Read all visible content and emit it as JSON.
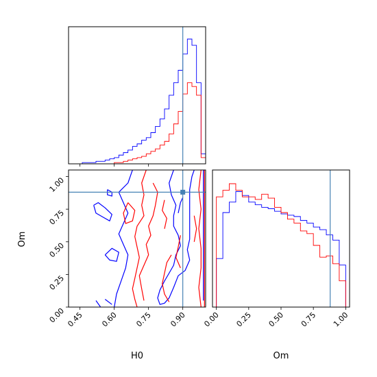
{
  "chart_data": {
    "type": "corner",
    "parameters": [
      "H0",
      "Om"
    ],
    "truth": {
      "H0": 0.9,
      "Om": 0.88
    },
    "colors": {
      "series_a": "#0000ff",
      "series_b": "#ff0000",
      "truth": "#4682b4",
      "frame": "#000000"
    },
    "panels": [
      {
        "id": "hist-H0",
        "type": "step-histogram",
        "xlim": [
          0.4,
          1.0
        ],
        "x_ticks": [
          0.45,
          0.6,
          0.75,
          0.9
        ],
        "x_tick_labels_shown": false,
        "y_ticks_shown": false,
        "bin_edges": [
          0.4,
          0.42,
          0.44,
          0.46,
          0.48,
          0.5,
          0.52,
          0.54,
          0.56,
          0.58,
          0.6,
          0.62,
          0.64,
          0.66,
          0.68,
          0.7,
          0.72,
          0.74,
          0.76,
          0.78,
          0.8,
          0.82,
          0.84,
          0.86,
          0.88,
          0.9,
          0.92,
          0.94,
          0.96,
          0.98,
          1.0
        ],
        "series": [
          {
            "key": "series_a",
            "counts": [
              0,
              0,
              0,
              1,
              1,
              1,
              2,
              2,
              3,
              4,
              5,
              7,
              9,
              11,
              14,
              16,
              19,
              21,
              25,
              30,
              36,
              44,
              55,
              65,
              75,
              88,
              100,
              95,
              65,
              8
            ]
          },
          {
            "key": "series_b",
            "counts": [
              0,
              0,
              0,
              0,
              0,
              0,
              0,
              0,
              0,
              0,
              1,
              1,
              2,
              3,
              4,
              5,
              6,
              8,
              10,
              12,
              15,
              18,
              24,
              32,
              42,
              56,
              65,
              62,
              55,
              5
            ]
          }
        ]
      },
      {
        "id": "contour-H0-Om",
        "type": "contour",
        "xlabel": "H0",
        "ylabel": "Om",
        "xlim": [
          0.4,
          1.0
        ],
        "ylim": [
          0.0,
          1.05
        ],
        "x_ticks": [
          0.45,
          0.6,
          0.75,
          0.9
        ],
        "x_tick_labels": [
          "0.45",
          "0.60",
          "0.75",
          "0.90"
        ],
        "y_ticks": [
          0.0,
          0.25,
          0.5,
          0.75,
          1.0
        ],
        "y_tick_labels": [
          "0.00",
          "0.25",
          "0.50",
          "0.75",
          "1.00"
        ],
        "series": [
          {
            "key": "series_a",
            "contours": [
              [
                [
                  0.68,
                  1.05
                ],
                [
                  0.66,
                  0.95
                ],
                [
                  0.62,
                  0.88
                ],
                [
                  0.64,
                  0.8
                ],
                [
                  0.66,
                  0.72
                ],
                [
                  0.64,
                  0.64
                ],
                [
                  0.62,
                  0.56
                ],
                [
                  0.64,
                  0.48
                ],
                [
                  0.66,
                  0.4
                ],
                [
                  0.65,
                  0.3
                ],
                [
                  0.63,
                  0.2
                ],
                [
                  0.61,
                  0.1
                ],
                [
                  0.6,
                  0.0
                ]
              ],
              [
                [
                  0.86,
                  1.05
                ],
                [
                  0.84,
                  0.95
                ],
                [
                  0.85,
                  0.86
                ],
                [
                  0.87,
                  0.78
                ],
                [
                  0.86,
                  0.7
                ],
                [
                  0.86,
                  0.62
                ],
                [
                  0.88,
                  0.55
                ],
                [
                  0.89,
                  0.47
                ],
                [
                  0.87,
                  0.4
                ],
                [
                  0.86,
                  0.32
                ],
                [
                  0.84,
                  0.26
                ],
                [
                  0.82,
                  0.2
                ],
                [
                  0.8,
                  0.13
                ],
                [
                  0.79,
                  0.07
                ],
                [
                  0.8,
                  0.02
                ],
                [
                  0.82,
                  0.03
                ],
                [
                  0.84,
                  0.07
                ],
                [
                  0.86,
                  0.15
                ],
                [
                  0.88,
                  0.24
                ],
                [
                  0.91,
                  0.28
                ],
                [
                  0.93,
                  0.36
                ],
                [
                  0.92,
                  0.44
                ],
                [
                  0.93,
                  0.52
                ],
                [
                  0.93,
                  0.6
                ],
                [
                  0.93,
                  0.7
                ],
                [
                  0.93,
                  0.8
                ],
                [
                  0.93,
                  0.9
                ],
                [
                  0.94,
                  1.0
                ],
                [
                  0.95,
                  1.05
                ]
              ],
              [
                [
                  0.57,
                  0.9
                ],
                [
                  0.59,
                  0.88
                ],
                [
                  0.59,
                  0.85
                ],
                [
                  0.57,
                  0.86
                ],
                [
                  0.57,
                  0.9
                ]
              ],
              [
                [
                  0.51,
                  0.78
                ],
                [
                  0.53,
                  0.8
                ],
                [
                  0.56,
                  0.76
                ],
                [
                  0.59,
                  0.71
                ],
                [
                  0.58,
                  0.66
                ],
                [
                  0.55,
                  0.69
                ],
                [
                  0.52,
                  0.72
                ],
                [
                  0.51,
                  0.78
                ]
              ],
              [
                [
                  0.56,
                  0.4
                ],
                [
                  0.59,
                  0.45
                ],
                [
                  0.62,
                  0.42
                ],
                [
                  0.61,
                  0.35
                ],
                [
                  0.58,
                  0.36
                ],
                [
                  0.56,
                  0.4
                ]
              ],
              [
                [
                  0.52,
                  0.05
                ],
                [
                  0.54,
                  0.0
                ]
              ],
              [
                [
                  0.56,
                  0.06
                ],
                [
                  0.59,
                  0.02
                ]
              ],
              [
                [
                  0.88,
                  0.72
                ],
                [
                  0.89,
                  0.8
                ],
                [
                  0.9,
                  0.84
                ]
              ],
              [
                [
                  0.99,
                  1.05
                ],
                [
                  0.99,
                  0.8
                ],
                [
                  0.99,
                  0.55
                ],
                [
                  0.99,
                  0.3
                ],
                [
                  0.99,
                  0.05
                ]
              ]
            ]
          },
          {
            "key": "series_b",
            "contours": [
              [
                [
                  0.74,
                  1.05
                ],
                [
                  0.72,
                  0.95
                ],
                [
                  0.73,
                  0.86
                ],
                [
                  0.72,
                  0.78
                ],
                [
                  0.73,
                  0.7
                ],
                [
                  0.7,
                  0.62
                ],
                [
                  0.69,
                  0.54
                ],
                [
                  0.7,
                  0.46
                ],
                [
                  0.71,
                  0.38
                ],
                [
                  0.7,
                  0.3
                ],
                [
                  0.69,
                  0.22
                ],
                [
                  0.68,
                  0.14
                ],
                [
                  0.69,
                  0.06
                ],
                [
                  0.7,
                  0.0
                ]
              ],
              [
                [
                  0.66,
                  0.8
                ],
                [
                  0.69,
                  0.74
                ],
                [
                  0.68,
                  0.66
                ],
                [
                  0.65,
                  0.64
                ],
                [
                  0.64,
                  0.72
                ],
                [
                  0.66,
                  0.8
                ]
              ],
              [
                [
                  0.77,
                  0.95
                ],
                [
                  0.79,
                  0.88
                ],
                [
                  0.78,
                  0.78
                ],
                [
                  0.77,
                  0.7
                ],
                [
                  0.75,
                  0.62
                ],
                [
                  0.76,
                  0.55
                ],
                [
                  0.74,
                  0.48
                ],
                [
                  0.75,
                  0.4
                ],
                [
                  0.73,
                  0.32
                ],
                [
                  0.71,
                  0.24
                ],
                [
                  0.72,
                  0.14
                ],
                [
                  0.73,
                  0.05
                ]
              ],
              [
                [
                  0.82,
                  0.82
                ],
                [
                  0.81,
                  0.74
                ],
                [
                  0.83,
                  0.68
                ],
                [
                  0.82,
                  0.6
                ]
              ],
              [
                [
                  0.85,
                  0.4
                ],
                [
                  0.83,
                  0.34
                ],
                [
                  0.82,
                  0.26
                ],
                [
                  0.81,
                  0.18
                ],
                [
                  0.82,
                  0.1
                ],
                [
                  0.84,
                  0.04
                ]
              ],
              [
                [
                  0.89,
                  0.55
                ],
                [
                  0.88,
                  0.46
                ],
                [
                  0.87,
                  0.38
                ],
                [
                  0.89,
                  0.3
                ]
              ],
              [
                [
                  0.95,
                  0.7
                ],
                [
                  0.96,
                  0.6
                ],
                [
                  0.95,
                  0.5
                ]
              ],
              [
                [
                  0.98,
                  1.05
                ],
                [
                  0.97,
                  0.9
                ],
                [
                  0.98,
                  0.75
                ],
                [
                  0.97,
                  0.6
                ],
                [
                  0.98,
                  0.45
                ],
                [
                  0.98,
                  0.3
                ],
                [
                  0.97,
                  0.15
                ],
                [
                  0.98,
                  0.0
                ]
              ],
              [
                [
                  0.995,
                  1.05
                ],
                [
                  0.995,
                  0.0
                ]
              ]
            ]
          }
        ]
      },
      {
        "id": "hist-Om",
        "type": "step-histogram",
        "xlabel": "Om",
        "xlim": [
          -0.03,
          1.03
        ],
        "x_ticks": [
          0.0,
          0.25,
          0.5,
          0.75,
          1.0
        ],
        "x_tick_labels": [
          "0.00",
          "0.25",
          "0.50",
          "0.75",
          "1.00"
        ],
        "y_ticks_shown": false,
        "bin_edges": [
          0.0,
          0.05,
          0.1,
          0.15,
          0.2,
          0.25,
          0.3,
          0.35,
          0.4,
          0.45,
          0.5,
          0.55,
          0.6,
          0.65,
          0.7,
          0.75,
          0.8,
          0.85,
          0.9,
          0.95,
          1.0
        ],
        "series": [
          {
            "key": "series_a",
            "counts": [
              37,
              72,
              80,
              88,
              85,
              80,
              78,
              76,
              75,
              73,
              71,
              70,
              69,
              66,
              64,
              61,
              59,
              55,
              51,
              32
            ]
          },
          {
            "key": "series_b",
            "counts": [
              84,
              89,
              94,
              89,
              84,
              84,
              82,
              86,
              83,
              76,
              72,
              67,
              64,
              58,
              56,
              47,
              38,
              39,
              33,
              20
            ]
          }
        ]
      }
    ]
  }
}
